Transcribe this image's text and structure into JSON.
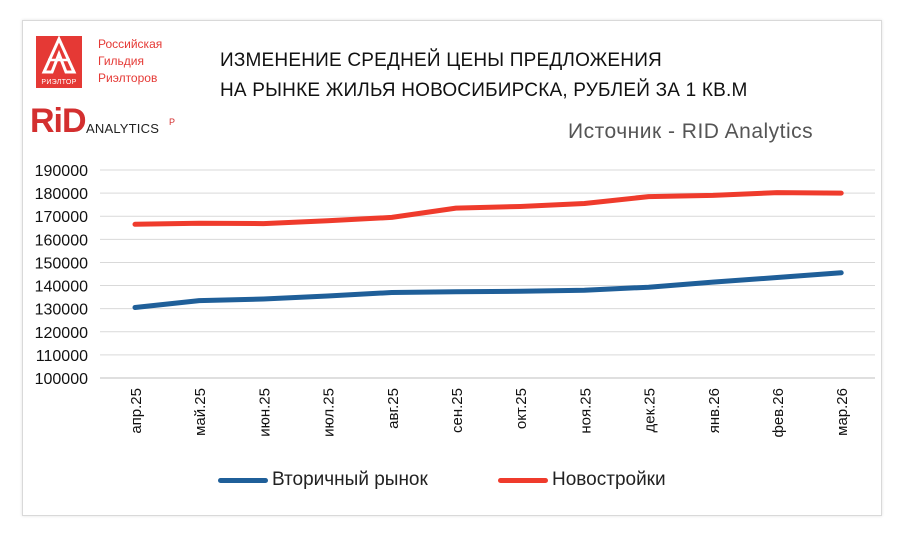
{
  "header": {
    "logo_tag": "РИЭЛТОР",
    "guild_lines": [
      "Российская",
      "Гильдия",
      "Риэлторов"
    ],
    "title_lines": [
      "ИЗМЕНЕНИЕ СРЕДНЕЙ ЦЕНЫ ПРЕДЛОЖЕНИЯ",
      "НА РЫНКЕ ЖИЛЬЯ  НОВОСИБИРСКА, РУБЛЕЙ ЗА 1 КВ.М"
    ],
    "rid_logo": "RiD",
    "rid_logo_sub": "ANALYTICS",
    "rid_logo_mark": "P",
    "source": "Источник - RID Analytics"
  },
  "colors": {
    "accent": "#e53935",
    "secondary_series": "#1f5f99",
    "primary_series": "#ef3b2c"
  },
  "chart_data": {
    "type": "line",
    "title": "ИЗМЕНЕНИЕ СРЕДНЕЙ ЦЕНЫ ПРЕДЛОЖЕНИЯ НА РЫНКЕ ЖИЛЬЯ  НОВОСИБИРСКА, РУБЛЕЙ ЗА 1 КВ.М",
    "xlabel": "",
    "ylabel": "",
    "categories": [
      "апр.25",
      "май.25",
      "июн.25",
      "июл.25",
      "авг.25",
      "сен.25",
      "окт.25",
      "ноя.25",
      "дек.25",
      "янв.26",
      "фев.26",
      "мар.26"
    ],
    "ylim": [
      100000,
      190000
    ],
    "yticks": [
      100000,
      110000,
      120000,
      130000,
      140000,
      150000,
      160000,
      170000,
      180000,
      190000
    ],
    "grid": true,
    "legend": "bottom",
    "series": [
      {
        "name": "Вторичный рынок",
        "color": "#1f5f99",
        "values": [
          130500,
          133500,
          134200,
          135500,
          137000,
          137300,
          137500,
          138000,
          139300,
          141500,
          143500,
          145500
        ]
      },
      {
        "name": "Новостройки",
        "color": "#ef3b2c",
        "values": [
          166500,
          167000,
          166800,
          168000,
          169500,
          173500,
          174200,
          175500,
          178500,
          179000,
          180200,
          180000
        ]
      }
    ]
  }
}
